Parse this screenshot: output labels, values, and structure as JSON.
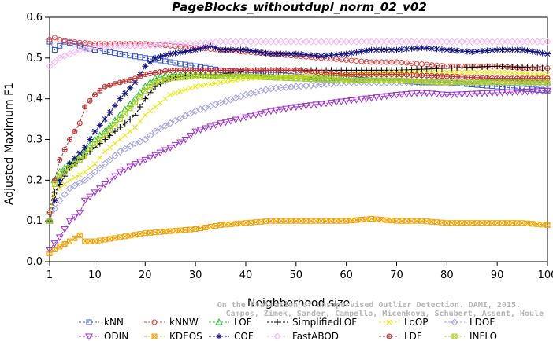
{
  "chart_data": {
    "type": "line",
    "title": "PageBlocks_withoutdupl_norm_02_v02",
    "xlabel": "Neighborhood size",
    "ylabel": "Adjusted Maximum F1",
    "xlim": [
      1,
      100
    ],
    "ylim": [
      0,
      0.6
    ],
    "xticks": [
      1,
      10,
      20,
      30,
      40,
      50,
      60,
      70,
      80,
      90,
      100
    ],
    "yticks": [
      0.0,
      0.1,
      0.2,
      0.3,
      0.4,
      0.5,
      0.6
    ],
    "ytick_labels": [
      "0.0",
      "0.1",
      "0.2",
      "0.3",
      "0.4",
      "0.5",
      "0.6"
    ],
    "grid": false,
    "legend_position": "bottom",
    "series": [
      {
        "name": "kNN",
        "color": "#3050d0",
        "marker": "square",
        "x": [
          1,
          2,
          4,
          6,
          8,
          10,
          15,
          20,
          25,
          30,
          35,
          40,
          45,
          50,
          55,
          60,
          65,
          70,
          75,
          80,
          85,
          90,
          95,
          100
        ],
        "y": [
          0.54,
          0.52,
          0.54,
          0.535,
          0.525,
          0.52,
          0.51,
          0.5,
          0.49,
          0.48,
          0.47,
          0.465,
          0.46,
          0.455,
          0.45,
          0.45,
          0.445,
          0.445,
          0.44,
          0.44,
          0.435,
          0.43,
          0.425,
          0.42
        ]
      },
      {
        "name": "kNNW",
        "color": "#e04040",
        "marker": "circle",
        "x": [
          1,
          2,
          3,
          5,
          10,
          15,
          20,
          25,
          30,
          35,
          40,
          45,
          50,
          55,
          60,
          65,
          70,
          75,
          80,
          85,
          90,
          95,
          100
        ],
        "y": [
          0.545,
          0.55,
          0.545,
          0.54,
          0.535,
          0.535,
          0.535,
          0.53,
          0.525,
          0.52,
          0.515,
          0.51,
          0.505,
          0.5,
          0.495,
          0.49,
          0.49,
          0.485,
          0.48,
          0.48,
          0.48,
          0.475,
          0.475
        ]
      },
      {
        "name": "LOF",
        "color": "#20c020",
        "marker": "triangle-up",
        "x": [
          1,
          2,
          3,
          5,
          8,
          10,
          12,
          15,
          18,
          20,
          22,
          25,
          30,
          35,
          40,
          50,
          60,
          70,
          80,
          90,
          100
        ],
        "y": [
          0.1,
          0.2,
          0.22,
          0.24,
          0.27,
          0.3,
          0.32,
          0.36,
          0.4,
          0.43,
          0.45,
          0.46,
          0.46,
          0.455,
          0.455,
          0.45,
          0.445,
          0.445,
          0.44,
          0.445,
          0.44
        ]
      },
      {
        "name": "SimplifiedLOF",
        "color": "#000000",
        "marker": "plus",
        "x": [
          1,
          2,
          3,
          5,
          8,
          10,
          12,
          15,
          18,
          20,
          22,
          25,
          30,
          35,
          40,
          50,
          60,
          70,
          80,
          90,
          100
        ],
        "y": [
          0.1,
          0.17,
          0.19,
          0.23,
          0.26,
          0.28,
          0.3,
          0.33,
          0.36,
          0.4,
          0.43,
          0.45,
          0.46,
          0.46,
          0.47,
          0.47,
          0.47,
          0.47,
          0.475,
          0.48,
          0.475
        ]
      },
      {
        "name": "LoOP",
        "color": "#e8e800",
        "marker": "x",
        "x": [
          1,
          2,
          3,
          5,
          8,
          10,
          12,
          15,
          18,
          20,
          22,
          25,
          30,
          35,
          40,
          50,
          60,
          70,
          80,
          90,
          100
        ],
        "y": [
          0.1,
          0.16,
          0.18,
          0.2,
          0.22,
          0.24,
          0.27,
          0.3,
          0.33,
          0.36,
          0.38,
          0.41,
          0.43,
          0.44,
          0.45,
          0.455,
          0.46,
          0.465,
          0.465,
          0.465,
          0.46
        ]
      },
      {
        "name": "LDOF",
        "color": "#a0a0e0",
        "marker": "diamond",
        "x": [
          1,
          2,
          3,
          5,
          8,
          10,
          12,
          15,
          18,
          20,
          22,
          25,
          30,
          35,
          40,
          45,
          50,
          60,
          70,
          80,
          90,
          100
        ],
        "y": [
          0.1,
          0.13,
          0.15,
          0.18,
          0.2,
          0.22,
          0.24,
          0.27,
          0.29,
          0.3,
          0.32,
          0.34,
          0.37,
          0.39,
          0.41,
          0.425,
          0.43,
          0.44,
          0.44,
          0.44,
          0.44,
          0.435
        ]
      },
      {
        "name": "ODIN",
        "color": "#a030d0",
        "marker": "triangle-down",
        "x": [
          1,
          3,
          5,
          7,
          8,
          10,
          13,
          15,
          18,
          20,
          25,
          28,
          30,
          35,
          40,
          45,
          50,
          60,
          70,
          75,
          80,
          90,
          100
        ],
        "y": [
          0.03,
          0.06,
          0.1,
          0.12,
          0.15,
          0.17,
          0.2,
          0.22,
          0.24,
          0.25,
          0.28,
          0.3,
          0.32,
          0.34,
          0.355,
          0.37,
          0.38,
          0.395,
          0.41,
          0.415,
          0.41,
          0.415,
          0.42
        ]
      },
      {
        "name": "KDEOS",
        "color": "#f0a000",
        "marker": "square-x",
        "x": [
          1,
          2,
          5,
          7,
          8,
          10,
          15,
          20,
          25,
          30,
          35,
          40,
          45,
          50,
          55,
          60,
          65,
          70,
          75,
          80,
          85,
          90,
          95,
          100
        ],
        "y": [
          0.02,
          0.03,
          0.05,
          0.065,
          0.05,
          0.05,
          0.06,
          0.07,
          0.075,
          0.08,
          0.09,
          0.095,
          0.1,
          0.1,
          0.1,
          0.1,
          0.105,
          0.1,
          0.1,
          0.095,
          0.095,
          0.095,
          0.095,
          0.09
        ]
      },
      {
        "name": "COF",
        "color": "#101080",
        "marker": "asterisk",
        "x": [
          1,
          2,
          3,
          5,
          8,
          10,
          12,
          15,
          18,
          20,
          22,
          25,
          30,
          33,
          35,
          40,
          45,
          50,
          55,
          60,
          65,
          70,
          75,
          80,
          85,
          90,
          95,
          100
        ],
        "y": [
          0.1,
          0.15,
          0.2,
          0.24,
          0.28,
          0.32,
          0.35,
          0.4,
          0.44,
          0.48,
          0.5,
          0.51,
          0.52,
          0.53,
          0.52,
          0.52,
          0.51,
          0.51,
          0.505,
          0.51,
          0.52,
          0.52,
          0.525,
          0.52,
          0.515,
          0.52,
          0.52,
          0.51
        ]
      },
      {
        "name": "FastABOD",
        "color": "#f4b4f4",
        "marker": "diamond",
        "x": [
          1,
          2,
          3,
          5,
          7,
          10,
          15,
          20,
          25,
          30,
          35,
          40,
          45,
          50,
          60,
          70,
          80,
          90,
          100
        ],
        "y": [
          0.48,
          0.49,
          0.5,
          0.51,
          0.52,
          0.525,
          0.53,
          0.53,
          0.535,
          0.535,
          0.54,
          0.54,
          0.54,
          0.54,
          0.54,
          0.54,
          0.54,
          0.54,
          0.54
        ]
      },
      {
        "name": "LDF",
        "color": "#c03030",
        "marker": "circle-plus",
        "x": [
          1,
          2,
          3,
          5,
          6,
          7,
          8,
          10,
          12,
          15,
          18,
          20,
          25,
          30,
          40,
          50,
          60,
          70,
          80,
          90,
          100
        ],
        "y": [
          0.12,
          0.2,
          0.25,
          0.3,
          0.32,
          0.34,
          0.38,
          0.41,
          0.43,
          0.44,
          0.45,
          0.46,
          0.47,
          0.47,
          0.47,
          0.47,
          0.46,
          0.46,
          0.455,
          0.45,
          0.45
        ]
      },
      {
        "name": "INFLO",
        "color": "#b0d020",
        "marker": "square-x",
        "x": [
          1,
          2,
          3,
          5,
          8,
          10,
          12,
          15,
          18,
          20,
          22,
          25,
          30,
          35,
          40,
          50,
          60,
          70,
          80,
          90,
          100
        ],
        "y": [
          0.1,
          0.19,
          0.21,
          0.23,
          0.26,
          0.29,
          0.31,
          0.35,
          0.39,
          0.42,
          0.44,
          0.45,
          0.455,
          0.455,
          0.455,
          0.45,
          0.445,
          0.445,
          0.44,
          0.44,
          0.44
        ]
      }
    ],
    "legend_rows": [
      [
        "kNN",
        "kNNW",
        "LOF",
        "SimplifiedLOF",
        "LoOP",
        "LDOF"
      ],
      [
        "ODIN",
        "KDEOS",
        "COF",
        "FastABOD",
        "LDF",
        "INFLO"
      ]
    ],
    "annotation": {
      "text1": "Campos, Zimek, Sander, Campello, Micenkova, Schubert, Assent, Houle",
      "text2": "On the Evaluation of Unsupervised Outlier Detection. DAMI, 2015."
    }
  }
}
